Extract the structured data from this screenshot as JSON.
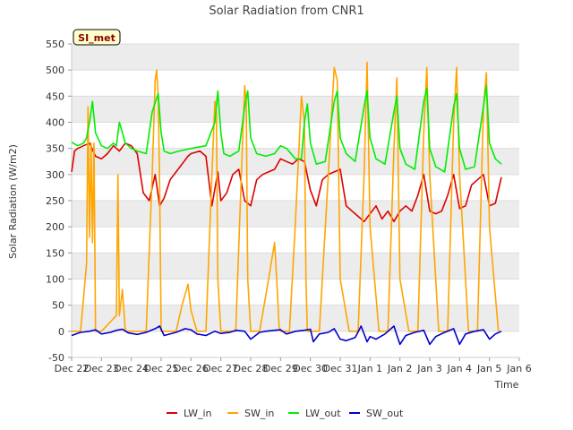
{
  "chart_data": {
    "type": "line",
    "title": "Solar Radiation from CNR1",
    "xlabel": "Time",
    "ylabel": "Solar Radiation (W/m2)",
    "badge": "SI_met",
    "ylim": [
      -50,
      550
    ],
    "yticks": [
      -50,
      0,
      50,
      100,
      150,
      200,
      250,
      300,
      350,
      400,
      450,
      500,
      550
    ],
    "xlim": [
      0,
      15
    ],
    "x_unit": "days since Dec 22",
    "xticks": [
      {
        "value": 0,
        "label": "Dec 22"
      },
      {
        "value": 1,
        "label": "Dec 23"
      },
      {
        "value": 2,
        "label": "Dec 24"
      },
      {
        "value": 3,
        "label": "Dec 25"
      },
      {
        "value": 4,
        "label": "Dec 26"
      },
      {
        "value": 5,
        "label": "Dec 27"
      },
      {
        "value": 6,
        "label": "Dec 28"
      },
      {
        "value": 7,
        "label": "Dec 29"
      },
      {
        "value": 8,
        "label": "Dec 30"
      },
      {
        "value": 9,
        "label": "Dec 31"
      },
      {
        "value": 10,
        "label": "Jan 1"
      },
      {
        "value": 11,
        "label": "Jan 2"
      },
      {
        "value": 12,
        "label": "Jan 3"
      },
      {
        "value": 13,
        "label": "Jan 4"
      },
      {
        "value": 14,
        "label": "Jan 5"
      },
      {
        "value": 15,
        "label": "Jan 6"
      }
    ],
    "grid": "horizontal bands",
    "legend_position": "bottom",
    "series": [
      {
        "name": "LW_in",
        "color": "#dd0000",
        "x": [
          0.0,
          0.1,
          0.2,
          0.4,
          0.6,
          0.8,
          1.0,
          1.2,
          1.4,
          1.6,
          1.8,
          2.0,
          2.2,
          2.4,
          2.6,
          2.8,
          2.95,
          3.1,
          3.3,
          3.5,
          3.7,
          3.9,
          4.0,
          4.3,
          4.5,
          4.7,
          4.9,
          5.0,
          5.2,
          5.4,
          5.6,
          5.8,
          6.0,
          6.2,
          6.4,
          6.6,
          6.8,
          7.0,
          7.2,
          7.4,
          7.6,
          7.8,
          8.0,
          8.2,
          8.4,
          8.6,
          8.8,
          9.0,
          9.2,
          9.4,
          9.6,
          9.8,
          10.0,
          10.2,
          10.4,
          10.6,
          10.8,
          11.0,
          11.2,
          11.4,
          11.6,
          11.8,
          12.0,
          12.2,
          12.4,
          12.6,
          12.8,
          13.0,
          13.2,
          13.4,
          13.6,
          13.8,
          14.0,
          14.2,
          14.4
        ],
        "y": [
          305,
          345,
          350,
          355,
          360,
          335,
          330,
          340,
          355,
          345,
          360,
          355,
          340,
          265,
          250,
          300,
          240,
          255,
          290,
          305,
          320,
          335,
          340,
          345,
          335,
          240,
          305,
          250,
          265,
          300,
          310,
          250,
          240,
          290,
          300,
          305,
          310,
          330,
          325,
          320,
          330,
          325,
          270,
          240,
          290,
          300,
          305,
          310,
          240,
          230,
          220,
          210,
          225,
          240,
          215,
          230,
          210,
          230,
          240,
          230,
          260,
          300,
          230,
          225,
          230,
          260,
          300,
          235,
          240,
          280,
          290,
          300,
          240,
          245,
          295
        ]
      },
      {
        "name": "SW_in",
        "color": "#ffa500",
        "x": [
          0.0,
          0.3,
          0.5,
          0.55,
          0.6,
          0.65,
          0.7,
          0.75,
          0.8,
          0.9,
          1.0,
          1.5,
          1.55,
          1.6,
          1.7,
          1.8,
          2.0,
          2.5,
          2.7,
          2.8,
          2.85,
          2.9,
          2.95,
          3.0,
          3.2,
          3.5,
          3.7,
          3.9,
          4.0,
          4.2,
          4.5,
          4.7,
          4.8,
          4.85,
          4.9,
          5.0,
          5.3,
          5.5,
          5.7,
          5.8,
          5.85,
          5.9,
          6.0,
          6.3,
          6.6,
          6.8,
          6.9,
          6.95,
          7.0,
          7.3,
          7.5,
          7.7,
          7.8,
          7.85,
          7.9,
          8.0,
          8.3,
          8.6,
          8.8,
          8.9,
          9.0,
          9.3,
          9.6,
          9.8,
          9.9,
          10.0,
          10.3,
          10.6,
          10.8,
          10.9,
          11.0,
          11.3,
          11.6,
          11.8,
          11.9,
          12.0,
          12.3,
          12.6,
          12.8,
          12.9,
          13.0,
          13.3,
          13.6,
          13.8,
          13.9,
          14.0,
          14.3
        ],
        "y": [
          0,
          0,
          130,
          430,
          180,
          360,
          170,
          360,
          0,
          0,
          0,
          30,
          300,
          30,
          80,
          0,
          0,
          0,
          300,
          480,
          500,
          450,
          280,
          0,
          0,
          0,
          50,
          90,
          40,
          0,
          0,
          300,
          440,
          420,
          100,
          0,
          0,
          0,
          320,
          470,
          440,
          100,
          0,
          0,
          100,
          170,
          70,
          10,
          0,
          0,
          210,
          450,
          400,
          100,
          0,
          0,
          0,
          300,
          505,
          480,
          100,
          0,
          0,
          300,
          515,
          200,
          0,
          0,
          350,
          485,
          100,
          0,
          0,
          380,
          505,
          300,
          0,
          0,
          400,
          505,
          300,
          0,
          0,
          430,
          495,
          200,
          0
        ]
      },
      {
        "name": "LW_out",
        "color": "#00ee00",
        "x": [
          0.0,
          0.2,
          0.4,
          0.5,
          0.6,
          0.7,
          0.8,
          1.0,
          1.2,
          1.4,
          1.5,
          1.6,
          1.8,
          2.0,
          2.2,
          2.5,
          2.7,
          2.9,
          3.0,
          3.1,
          3.3,
          3.6,
          4.0,
          4.5,
          4.8,
          4.9,
          5.0,
          5.1,
          5.3,
          5.6,
          5.8,
          5.9,
          6.0,
          6.2,
          6.5,
          6.8,
          7.0,
          7.2,
          7.5,
          7.7,
          7.8,
          7.9,
          8.0,
          8.2,
          8.5,
          8.8,
          8.9,
          9.0,
          9.2,
          9.5,
          9.8,
          9.9,
          10.0,
          10.2,
          10.5,
          10.8,
          10.9,
          11.0,
          11.2,
          11.5,
          11.8,
          11.9,
          12.0,
          12.2,
          12.5,
          12.8,
          12.9,
          13.0,
          13.2,
          13.5,
          13.8,
          13.9,
          14.0,
          14.2,
          14.4
        ],
        "y": [
          362,
          355,
          360,
          370,
          400,
          440,
          380,
          355,
          350,
          360,
          355,
          400,
          360,
          350,
          345,
          340,
          420,
          455,
          380,
          345,
          340,
          345,
          350,
          355,
          400,
          460,
          380,
          340,
          335,
          345,
          430,
          460,
          370,
          340,
          335,
          340,
          355,
          350,
          330,
          330,
          400,
          435,
          360,
          320,
          325,
          440,
          460,
          370,
          340,
          325,
          430,
          460,
          370,
          330,
          320,
          420,
          450,
          350,
          320,
          310,
          440,
          465,
          350,
          315,
          305,
          430,
          455,
          350,
          310,
          315,
          430,
          470,
          360,
          330,
          320
        ]
      },
      {
        "name": "SW_out",
        "color": "#0000cc",
        "x": [
          0.0,
          0.3,
          0.6,
          0.8,
          1.0,
          1.3,
          1.5,
          1.7,
          1.9,
          2.2,
          2.5,
          2.8,
          2.95,
          3.1,
          3.5,
          3.8,
          4.0,
          4.2,
          4.5,
          4.8,
          5.0,
          5.3,
          5.5,
          5.8,
          6.0,
          6.3,
          6.5,
          6.8,
          7.0,
          7.2,
          7.5,
          7.8,
          8.0,
          8.1,
          8.3,
          8.6,
          8.8,
          9.0,
          9.2,
          9.5,
          9.7,
          9.9,
          10.0,
          10.2,
          10.5,
          10.8,
          11.0,
          11.2,
          11.5,
          11.8,
          12.0,
          12.2,
          12.5,
          12.8,
          13.0,
          13.2,
          13.5,
          13.8,
          14.0,
          14.2,
          14.4
        ],
        "y": [
          -8,
          -2,
          0,
          3,
          -5,
          -2,
          2,
          4,
          -3,
          -6,
          -2,
          5,
          10,
          -8,
          -2,
          5,
          3,
          -5,
          -8,
          0,
          -4,
          -2,
          2,
          0,
          -15,
          -2,
          0,
          2,
          3,
          -5,
          0,
          2,
          4,
          -20,
          -5,
          -2,
          5,
          -15,
          -18,
          -12,
          10,
          -20,
          -10,
          -15,
          -5,
          10,
          -25,
          -8,
          -2,
          2,
          -25,
          -10,
          -2,
          5,
          -25,
          -5,
          0,
          3,
          -15,
          -5,
          0
        ]
      }
    ]
  }
}
